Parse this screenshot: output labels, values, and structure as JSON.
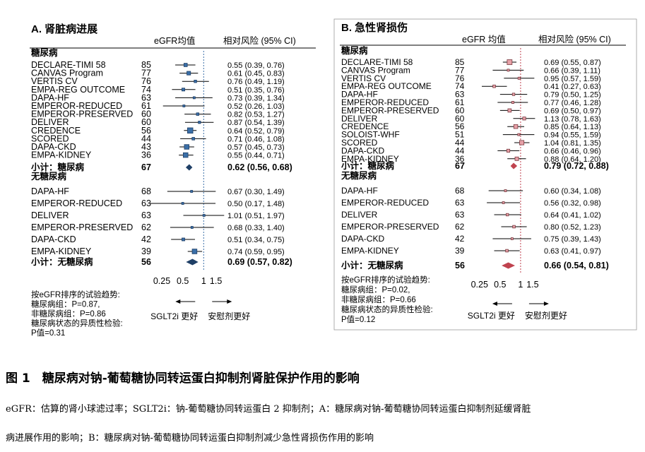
{
  "chart_data": [
    {
      "type": "forest",
      "panel_title": "A. 肾脏病进展",
      "col_egfr": "eGFR均值",
      "col_hr": "相对风险 (95% CI)",
      "xscale": "log",
      "xlim": [
        0.18,
        2.1
      ],
      "xticks": [
        0.25,
        0.5,
        1,
        1.5
      ],
      "xtick_labels": [
        "0.25",
        "0.5",
        "1",
        "1.5"
      ],
      "ref_line": 1,
      "ref_style": "dotted-blue",
      "groups": [
        {
          "label": "糖尿病",
          "trials": [
            {
              "name": "DECLARE-TIMI 58",
              "egfr": "85",
              "hr": 0.55,
              "lo": 0.39,
              "hi": 0.76,
              "ci": "0.55 (0.39, 0.76)"
            },
            {
              "name": "CANVAS Program",
              "egfr": "77",
              "hr": 0.61,
              "lo": 0.45,
              "hi": 0.83,
              "ci": "0.61 (0.45, 0.83)"
            },
            {
              "name": "VERTIS CV",
              "egfr": "76",
              "hr": 0.76,
              "lo": 0.49,
              "hi": 1.19,
              "ci": "0.76 (0.49, 1.19)"
            },
            {
              "name": "EMPA-REG OUTCOME",
              "egfr": "74",
              "hr": 0.51,
              "lo": 0.35,
              "hi": 0.76,
              "ci": "0.51 (0.35, 0.76)"
            },
            {
              "name": "DAPA-HF",
              "egfr": "63",
              "hr": 0.73,
              "lo": 0.39,
              "hi": 1.34,
              "ci": "0.73 (0.39, 1.34)"
            },
            {
              "name": "EMPEROR-REDUCED",
              "egfr": "61",
              "hr": 0.52,
              "lo": 0.26,
              "hi": 1.03,
              "ci": "0.52 (0.26, 1.03)"
            },
            {
              "name": "EMPEROR-PRESERVED",
              "egfr": "60",
              "hr": 0.82,
              "lo": 0.53,
              "hi": 1.27,
              "ci": "0.82 (0.53, 1.27)"
            },
            {
              "name": "DELIVER",
              "egfr": "60",
              "hr": 0.87,
              "lo": 0.54,
              "hi": 1.39,
              "ci": "0.87 (0.54, 1.39)"
            },
            {
              "name": "CREDENCE",
              "egfr": "56",
              "hr": 0.64,
              "lo": 0.52,
              "hi": 0.79,
              "ci": "0.64 (0.52, 0.79)"
            },
            {
              "name": "SCORED",
              "egfr": "44",
              "hr": 0.71,
              "lo": 0.46,
              "hi": 1.08,
              "ci": "0.71 (0.46, 1.08)"
            },
            {
              "name": "DAPA-CKD",
              "egfr": "43",
              "hr": 0.57,
              "lo": 0.45,
              "hi": 0.73,
              "ci": "0.57 (0.45, 0.73)"
            },
            {
              "name": "EMPA-KIDNEY",
              "egfr": "36",
              "hr": 0.55,
              "lo": 0.44,
              "hi": 0.71,
              "ci": "0.55 (0.44, 0.71)"
            }
          ],
          "subtotal": {
            "name": "小计：糖尿病",
            "egfr": "67",
            "hr": 0.62,
            "lo": 0.56,
            "hi": 0.68,
            "ci": "0.62 (0.56, 0.68)"
          }
        },
        {
          "label": "无糖尿病",
          "trials": [
            {
              "name": "DAPA-HF",
              "egfr": "68",
              "hr": 0.67,
              "lo": 0.3,
              "hi": 1.49,
              "ci": "0.67 (0.30, 1.49)"
            },
            {
              "name": "EMPEROR-REDUCED",
              "egfr": "63",
              "hr": 0.5,
              "lo": 0.17,
              "hi": 1.48,
              "ci": "0.50 (0.17, 1.48)"
            },
            {
              "name": "DELIVER",
              "egfr": "63",
              "hr": 1.01,
              "lo": 0.51,
              "hi": 1.97,
              "ci": "1.01 (0.51, 1.97)"
            },
            {
              "name": "EMPEROR-PRESERVED",
              "egfr": "62",
              "hr": 0.68,
              "lo": 0.33,
              "hi": 1.4,
              "ci": "0.68 (0.33, 1.40)"
            },
            {
              "name": "DAPA-CKD",
              "egfr": "42",
              "hr": 0.51,
              "lo": 0.34,
              "hi": 0.75,
              "ci": "0.51 (0.34, 0.75)"
            },
            {
              "name": "EMPA-KIDNEY",
              "egfr": "39",
              "hr": 0.74,
              "lo": 0.59,
              "hi": 0.95,
              "ci": "0.74 (0.59, 0.95)"
            }
          ],
          "subtotal": {
            "name": "小计：无糖尿病",
            "egfr": "56",
            "hr": 0.69,
            "lo": 0.57,
            "hi": 0.82,
            "ci": "0.69 (0.57, 0.82)"
          }
        }
      ],
      "trend_lines": [
        "按eGFR排序的试验趋势:",
        "糖尿病组：P=0.87,",
        "非糖尿病组：P=0.86",
        "糖尿病状态的异质性检验:",
        "P值=0.31"
      ],
      "favors_left": "SGLT2i 更好",
      "favors_right": "安慰剂更好"
    },
    {
      "type": "forest",
      "panel_title": "B. 急性肾损伤",
      "col_egfr": "eGFR 均值",
      "col_hr": "相对风险 (95% CI)",
      "xscale": "log",
      "xlim": [
        0.18,
        2.1
      ],
      "xticks": [
        0.25,
        0.5,
        1,
        1.5
      ],
      "xtick_labels": [
        "0.25",
        "0.5",
        "1",
        "1.5"
      ],
      "ref_line": 1,
      "ref_style": "dotted-red",
      "groups": [
        {
          "label": "糖尿病",
          "trials": [
            {
              "name": "DECLARE-TIMI 58",
              "egfr": "85",
              "hr": 0.69,
              "lo": 0.55,
              "hi": 0.87,
              "ci": "0.69 (0.55, 0.87)"
            },
            {
              "name": "CANVAS Program",
              "egfr": "77",
              "hr": 0.66,
              "lo": 0.39,
              "hi": 1.11,
              "ci": "0.66 (0.39, 1.11)"
            },
            {
              "name": "VERTIS CV",
              "egfr": "76",
              "hr": 0.95,
              "lo": 0.57,
              "hi": 1.59,
              "ci": "0.95 (0.57, 1.59)"
            },
            {
              "name": "EMPA-REG OUTCOME",
              "egfr": "74",
              "hr": 0.41,
              "lo": 0.27,
              "hi": 0.63,
              "ci": "0.41 (0.27, 0.63)"
            },
            {
              "name": "DAPA-HF",
              "egfr": "63",
              "hr": 0.79,
              "lo": 0.5,
              "hi": 1.25,
              "ci": "0.79 (0.50, 1.25)"
            },
            {
              "name": "EMPEROR-REDUCED",
              "egfr": "61",
              "hr": 0.77,
              "lo": 0.46,
              "hi": 1.28,
              "ci": "0.77 (0.46, 1.28)"
            },
            {
              "name": "EMPEROR-PRESERVED",
              "egfr": "60",
              "hr": 0.69,
              "lo": 0.5,
              "hi": 0.97,
              "ci": "0.69 (0.50, 0.97)"
            },
            {
              "name": "DELIVER",
              "egfr": "60",
              "hr": 1.13,
              "lo": 0.78,
              "hi": 1.63,
              "ci": "1.13 (0.78, 1.63)"
            },
            {
              "name": "CREDENCE",
              "egfr": "56",
              "hr": 0.85,
              "lo": 0.64,
              "hi": 1.13,
              "ci": "0.85 (0.64, 1.13)"
            },
            {
              "name": "SOLOIST-WHF",
              "egfr": "51",
              "hr": 0.94,
              "lo": 0.55,
              "hi": 1.59,
              "ci": "0.94 (0.55, 1.59)"
            },
            {
              "name": "SCORED",
              "egfr": "44",
              "hr": 1.04,
              "lo": 0.81,
              "hi": 1.35,
              "ci": "1.04 (0.81, 1.35)"
            },
            {
              "name": "DAPA-CKD",
              "egfr": "44",
              "hr": 0.66,
              "lo": 0.46,
              "hi": 0.96,
              "ci": "0.66 (0.46, 0.96)"
            },
            {
              "name": "EMPA-KIDNEY",
              "egfr": "36",
              "hr": 0.88,
              "lo": 0.64,
              "hi": 1.2,
              "ci": "0.88 (0.64, 1.20)"
            }
          ],
          "subtotal": {
            "name": "小计：糖尿病",
            "egfr": "67",
            "hr": 0.79,
            "lo": 0.72,
            "hi": 0.88,
            "ci": "0.79 (0.72, 0.88)"
          }
        },
        {
          "label": "无糖尿病",
          "trials": [
            {
              "name": "DAPA-HF",
              "egfr": "68",
              "hr": 0.6,
              "lo": 0.34,
              "hi": 1.08,
              "ci": "0.60 (0.34, 1.08)"
            },
            {
              "name": "EMPEROR-REDUCED",
              "egfr": "63",
              "hr": 0.56,
              "lo": 0.32,
              "hi": 0.98,
              "ci": "0.56 (0.32, 0.98)"
            },
            {
              "name": "DELIVER",
              "egfr": "63",
              "hr": 0.64,
              "lo": 0.41,
              "hi": 1.02,
              "ci": "0.64 (0.41, 1.02)"
            },
            {
              "name": "EMPEROR-PRESERVED",
              "egfr": "62",
              "hr": 0.8,
              "lo": 0.52,
              "hi": 1.23,
              "ci": "0.80 (0.52, 1.23)"
            },
            {
              "name": "DAPA-CKD",
              "egfr": "42",
              "hr": 0.75,
              "lo": 0.39,
              "hi": 1.43,
              "ci": "0.75 (0.39, 1.43)"
            },
            {
              "name": "EMPA-KIDNEY",
              "egfr": "39",
              "hr": 0.63,
              "lo": 0.41,
              "hi": 0.97,
              "ci": "0.63 (0.41, 0.97)"
            }
          ],
          "subtotal": {
            "name": "小计：无糖尿病",
            "egfr": "56",
            "hr": 0.66,
            "lo": 0.54,
            "hi": 0.81,
            "ci": "0.66 (0.54, 0.81)"
          }
        }
      ],
      "trend_lines": [
        "按eGFR排序的试验趋势:",
        "糖尿病组：P=0.02,",
        "非糖尿病组：P=0.66",
        "糖尿病状态的异质性检验:",
        "P值=0.12"
      ],
      "favors_left": "SGLT2i 更好",
      "favors_right": "安慰剂更好"
    }
  ],
  "colors": {
    "panel_a_marker": "#3a6fa8",
    "panel_a_marker_edge": "#1f3f66",
    "panel_a_diamond": "#1f3f66",
    "panel_b_marker": "#e7a1a8",
    "panel_b_marker_edge": "#7a3a40",
    "panel_b_diamond": "#c0434f",
    "ref_line_a": "#3a6fa8",
    "ref_line_b": "#c0434f"
  },
  "caption": {
    "title": "图 1　糖尿病对钠-葡萄糖协同转运蛋白抑制剂肾脏保护作用的影响",
    "line1": "eGFR：估算的肾小球滤过率；SGLT2i：钠-葡萄糖协同转运蛋白 2 抑制剂；A：糖尿病对钠-葡萄糖协同转运蛋白抑制剂延缓肾脏",
    "line2": "病进展作用的影响；B：糖尿病对钠-葡萄糖协同转运蛋白抑制剂减少急性肾损伤作用的影响"
  }
}
